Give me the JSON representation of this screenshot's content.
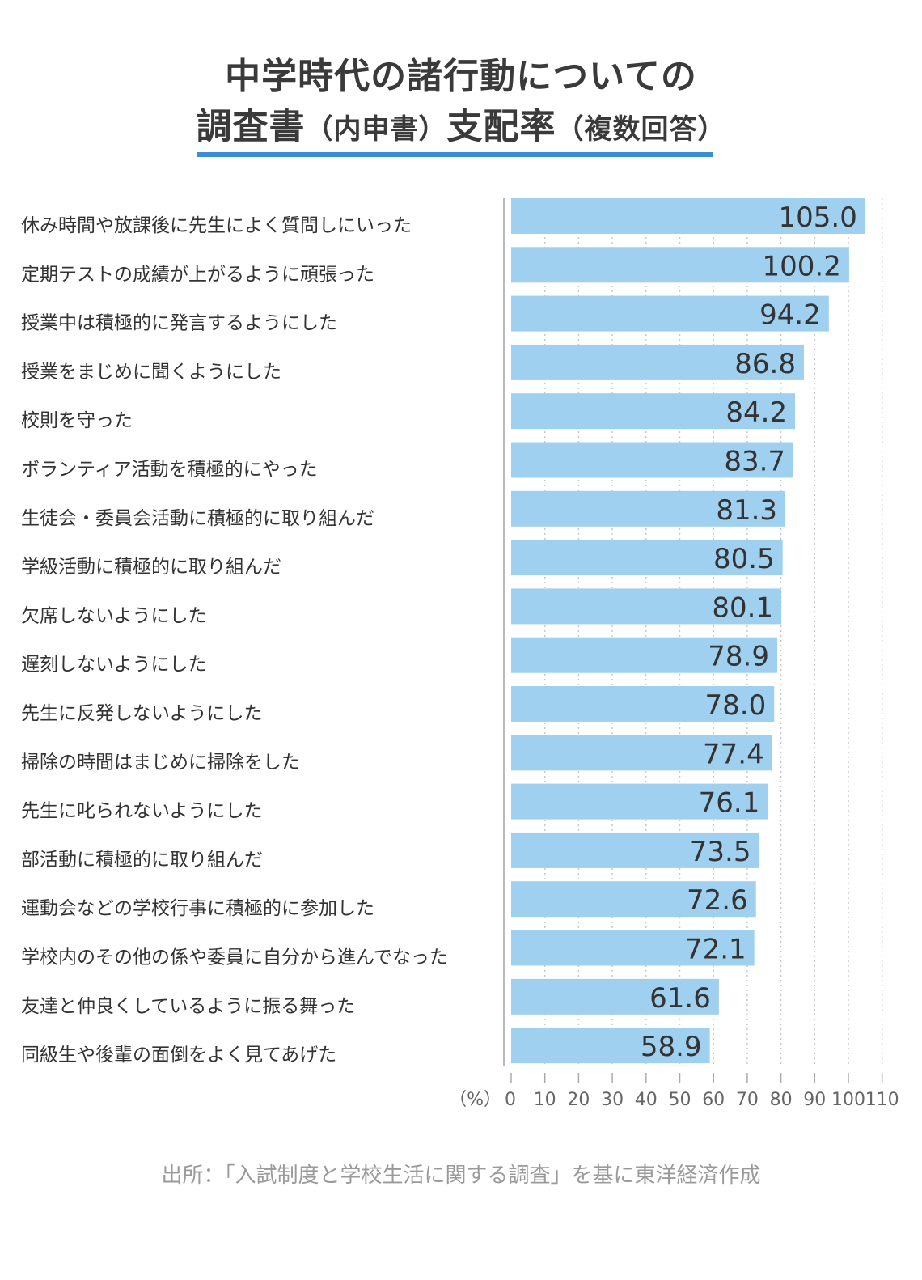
{
  "title_line1": "中学時代の諸行動についての",
  "title_line2_main": "調査書",
  "title_line2_paren1": "（内申書）",
  "title_line2_main2": "支配率",
  "title_line2_paren2": "（複数回答）",
  "source": "出所：「入試制度と学校生活に関する調査」を基に東洋経済作成",
  "colors": {
    "bar": "#9fd0ef",
    "title_rule": "#3a8fd0",
    "axis": "#bbbbbb",
    "grid": "#c8c8c8"
  },
  "chart_data": {
    "type": "bar",
    "orientation": "horizontal",
    "unit_label": "（%）",
    "xlim": [
      0,
      110
    ],
    "ticks": [
      "0",
      "10",
      "20",
      "30",
      "40",
      "50",
      "60",
      "70",
      "80",
      "90",
      "100",
      "110"
    ],
    "grid": "dotted vertical",
    "categories": [
      "休み時間や放課後に先生によく質問しにいった",
      "定期テストの成績が上がるように頑張った",
      "授業中は積極的に発言するようにした",
      "授業をまじめに聞くようにした",
      "校則を守った",
      "ボランティア活動を積極的にやった",
      "生徒会・委員会活動に積極的に取り組んだ",
      "学級活動に積極的に取り組んだ",
      "欠席しないようにした",
      "遅刻しないようにした",
      "先生に反発しないようにした",
      "掃除の時間はまじめに掃除をした",
      "先生に叱られないようにした",
      "部活動に積極的に取り組んだ",
      "運動会などの学校行事に積極的に参加した",
      "学校内のその他の係や委員に自分から進んでなった",
      "友達と仲良くしているように振る舞った",
      "同級生や後輩の面倒をよく見てあげた"
    ],
    "values": [
      105.0,
      100.2,
      94.2,
      86.8,
      84.2,
      83.7,
      81.3,
      80.5,
      80.1,
      78.9,
      78.0,
      77.4,
      76.1,
      73.5,
      72.6,
      72.1,
      61.6,
      58.9
    ],
    "labels": [
      "105.0",
      "100.2",
      "94.2",
      "86.8",
      "84.2",
      "83.7",
      "81.3",
      "80.5",
      "80.1",
      "78.9",
      "78.0",
      "77.4",
      "76.1",
      "73.5",
      "72.6",
      "72.1",
      "61.6",
      "58.9"
    ]
  }
}
